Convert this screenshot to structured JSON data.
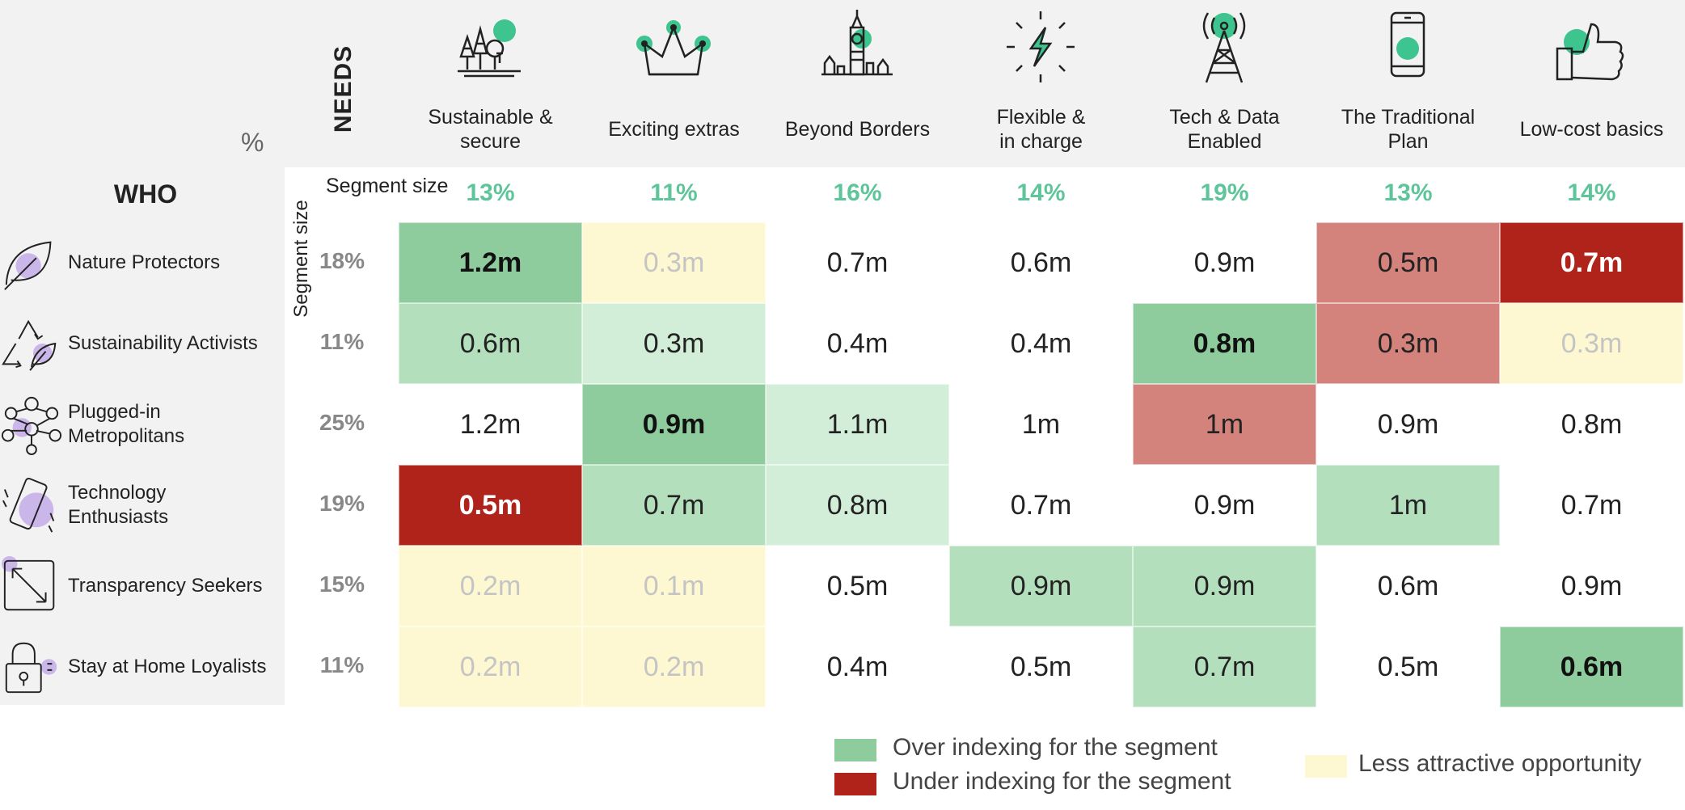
{
  "axis": {
    "pct_label": "%",
    "needs_label": "NEEDS",
    "who_label": "WHO",
    "segment_size_label": "Segment size"
  },
  "columns": [
    {
      "label": "Sustainable & secure",
      "lines": [
        "Sustainable &",
        "secure"
      ],
      "size": "13%",
      "icon": "forest-icon"
    },
    {
      "label": "Exciting extras",
      "lines": [
        "Exciting extras"
      ],
      "size": "11%",
      "icon": "crown-icon"
    },
    {
      "label": "Beyond Borders",
      "lines": [
        "Beyond Borders"
      ],
      "size": "16%",
      "icon": "big-ben-icon"
    },
    {
      "label": "Flexible & in charge",
      "lines": [
        "Flexible &",
        "in charge"
      ],
      "size": "14%",
      "icon": "lightning-icon"
    },
    {
      "label": "Tech & Data Enabled",
      "lines": [
        "Tech & Data",
        "Enabled"
      ],
      "size": "19%",
      "icon": "antenna-tower-icon"
    },
    {
      "label": "The Traditional Plan",
      "lines": [
        "The Traditional",
        "Plan"
      ],
      "size": "13%",
      "icon": "phone-icon"
    },
    {
      "label": "Low-cost basics",
      "lines": [
        "Low-cost basics"
      ],
      "size": "14%",
      "icon": "thumbs-up-icon"
    }
  ],
  "rows": [
    {
      "label": "Nature Protectors",
      "lines": [
        "Nature Protectors"
      ],
      "size": "18%",
      "icon": "leaf-icon"
    },
    {
      "label": "Sustainability Activists",
      "lines": [
        "Sustainability Activists"
      ],
      "size": "11%",
      "icon": "recycle-leaf-icon"
    },
    {
      "label": "Plugged-in Metropolitans",
      "lines": [
        "Plugged-in",
        "Metropolitans"
      ],
      "size": "25%",
      "icon": "network-people-icon"
    },
    {
      "label": "Technology Enthusiasts",
      "lines": [
        "Technology",
        "Enthusiasts"
      ],
      "size": "19%",
      "icon": "smartphone-icon"
    },
    {
      "label": "Transparency Seekers",
      "lines": [
        "Transparency Seekers"
      ],
      "size": "15%",
      "icon": "expand-arrows-icon"
    },
    {
      "label": "Stay at Home Loyalists",
      "lines": [
        "Stay at Home Loyalists"
      ],
      "size": "11%",
      "icon": "padlock-icon"
    }
  ],
  "colors": {
    "over_strong": "#8fcc9d",
    "over_light": "#b3dfbc",
    "over_faint": "#d3eed8",
    "under_strong": "#b0231a",
    "under_light": "#d4827c",
    "less_attractive": "#fdf8d1",
    "neutral": "#ffffff",
    "segment_green": "#5ec49a",
    "accent_purple": "#cbb6ea",
    "accent_teal": "#3dc48f"
  },
  "chart_data": {
    "type": "heatmap",
    "x": [
      "Sustainable & secure",
      "Exciting extras",
      "Beyond Borders",
      "Flexible & in charge",
      "Tech & Data Enabled",
      "The Traditional Plan",
      "Low-cost basics"
    ],
    "y": [
      "Nature Protectors",
      "Sustainability Activists",
      "Plugged-in Metropolitans",
      "Technology Enthusiasts",
      "Transparency Seekers",
      "Stay at Home Loyalists"
    ],
    "column_segment_size": [
      "13%",
      "11%",
      "16%",
      "14%",
      "19%",
      "13%",
      "14%"
    ],
    "row_segment_size": [
      "18%",
      "11%",
      "25%",
      "19%",
      "15%",
      "11%"
    ],
    "values": [
      [
        "1.2m",
        "0.3m",
        "0.7m",
        "0.6m",
        "0.9m",
        "0.5m",
        "0.7m"
      ],
      [
        "0.6m",
        "0.3m",
        "0.4m",
        "0.4m",
        "0.8m",
        "0.3m",
        "0.3m"
      ],
      [
        "1.2m",
        "0.9m",
        "1.1m",
        "1m",
        "1m",
        "0.9m",
        "0.8m"
      ],
      [
        "0.5m",
        "0.7m",
        "0.8m",
        "0.7m",
        "0.9m",
        "1m",
        "0.7m"
      ],
      [
        "0.2m",
        "0.1m",
        "0.5m",
        "0.9m",
        "0.9m",
        "0.6m",
        "0.9m"
      ],
      [
        "0.2m",
        "0.2m",
        "0.4m",
        "0.5m",
        "0.7m",
        "0.5m",
        "0.6m"
      ]
    ],
    "categories": [
      [
        "over_strong",
        "less_attractive",
        "neutral",
        "neutral",
        "neutral",
        "under_light",
        "under_strong"
      ],
      [
        "over_light",
        "over_faint",
        "neutral",
        "neutral",
        "over_strong",
        "under_light",
        "less_attractive"
      ],
      [
        "neutral",
        "over_strong",
        "over_faint",
        "neutral",
        "under_light",
        "neutral",
        "neutral"
      ],
      [
        "under_strong",
        "over_light",
        "over_faint",
        "neutral",
        "neutral",
        "over_light",
        "neutral"
      ],
      [
        "less_attractive",
        "less_attractive",
        "neutral",
        "over_light",
        "over_light",
        "neutral",
        "neutral"
      ],
      [
        "less_attractive",
        "less_attractive",
        "neutral",
        "neutral",
        "over_light",
        "neutral",
        "over_strong"
      ]
    ],
    "legend": [
      {
        "label": "Over indexing for the segment",
        "color": "#8fcc9d"
      },
      {
        "label": "Under indexing for the segment",
        "color": "#b0231a"
      },
      {
        "label": "Less attractive opportunity",
        "color": "#fdf8d1"
      }
    ]
  }
}
